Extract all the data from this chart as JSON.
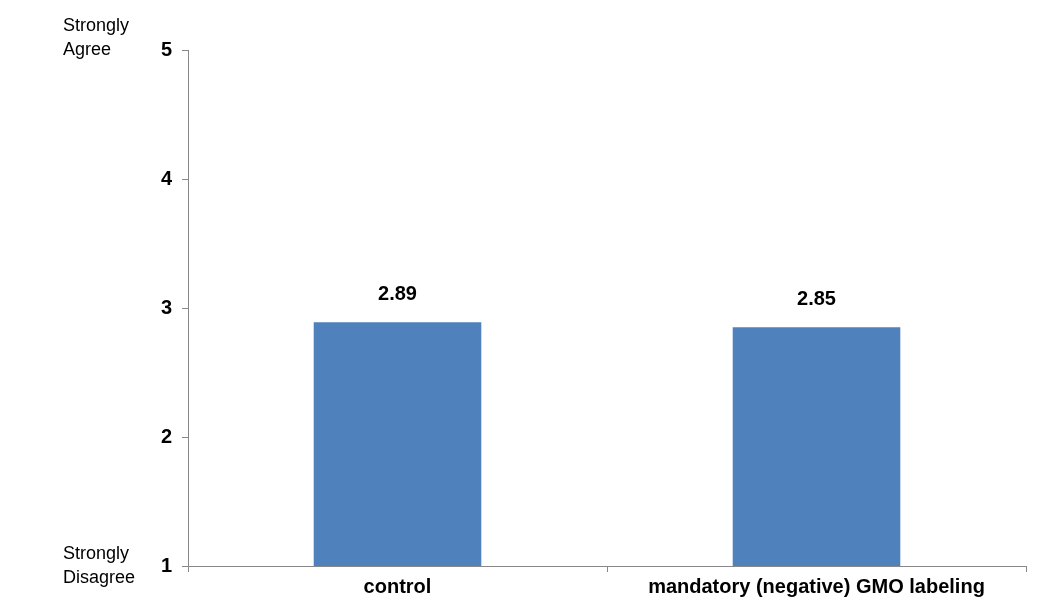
{
  "chart_data": {
    "type": "bar",
    "categories": [
      "control",
      "mandatory (negative) GMO labeling"
    ],
    "values": [
      2.89,
      2.85
    ],
    "color": "#4f81bd",
    "ylim": [
      1,
      5
    ],
    "yticks": [
      1,
      2,
      3,
      4,
      5
    ],
    "grid": false,
    "data_labels": true,
    "annotations": [
      "Strongly Agree",
      "Strongly Disagree"
    ]
  }
}
